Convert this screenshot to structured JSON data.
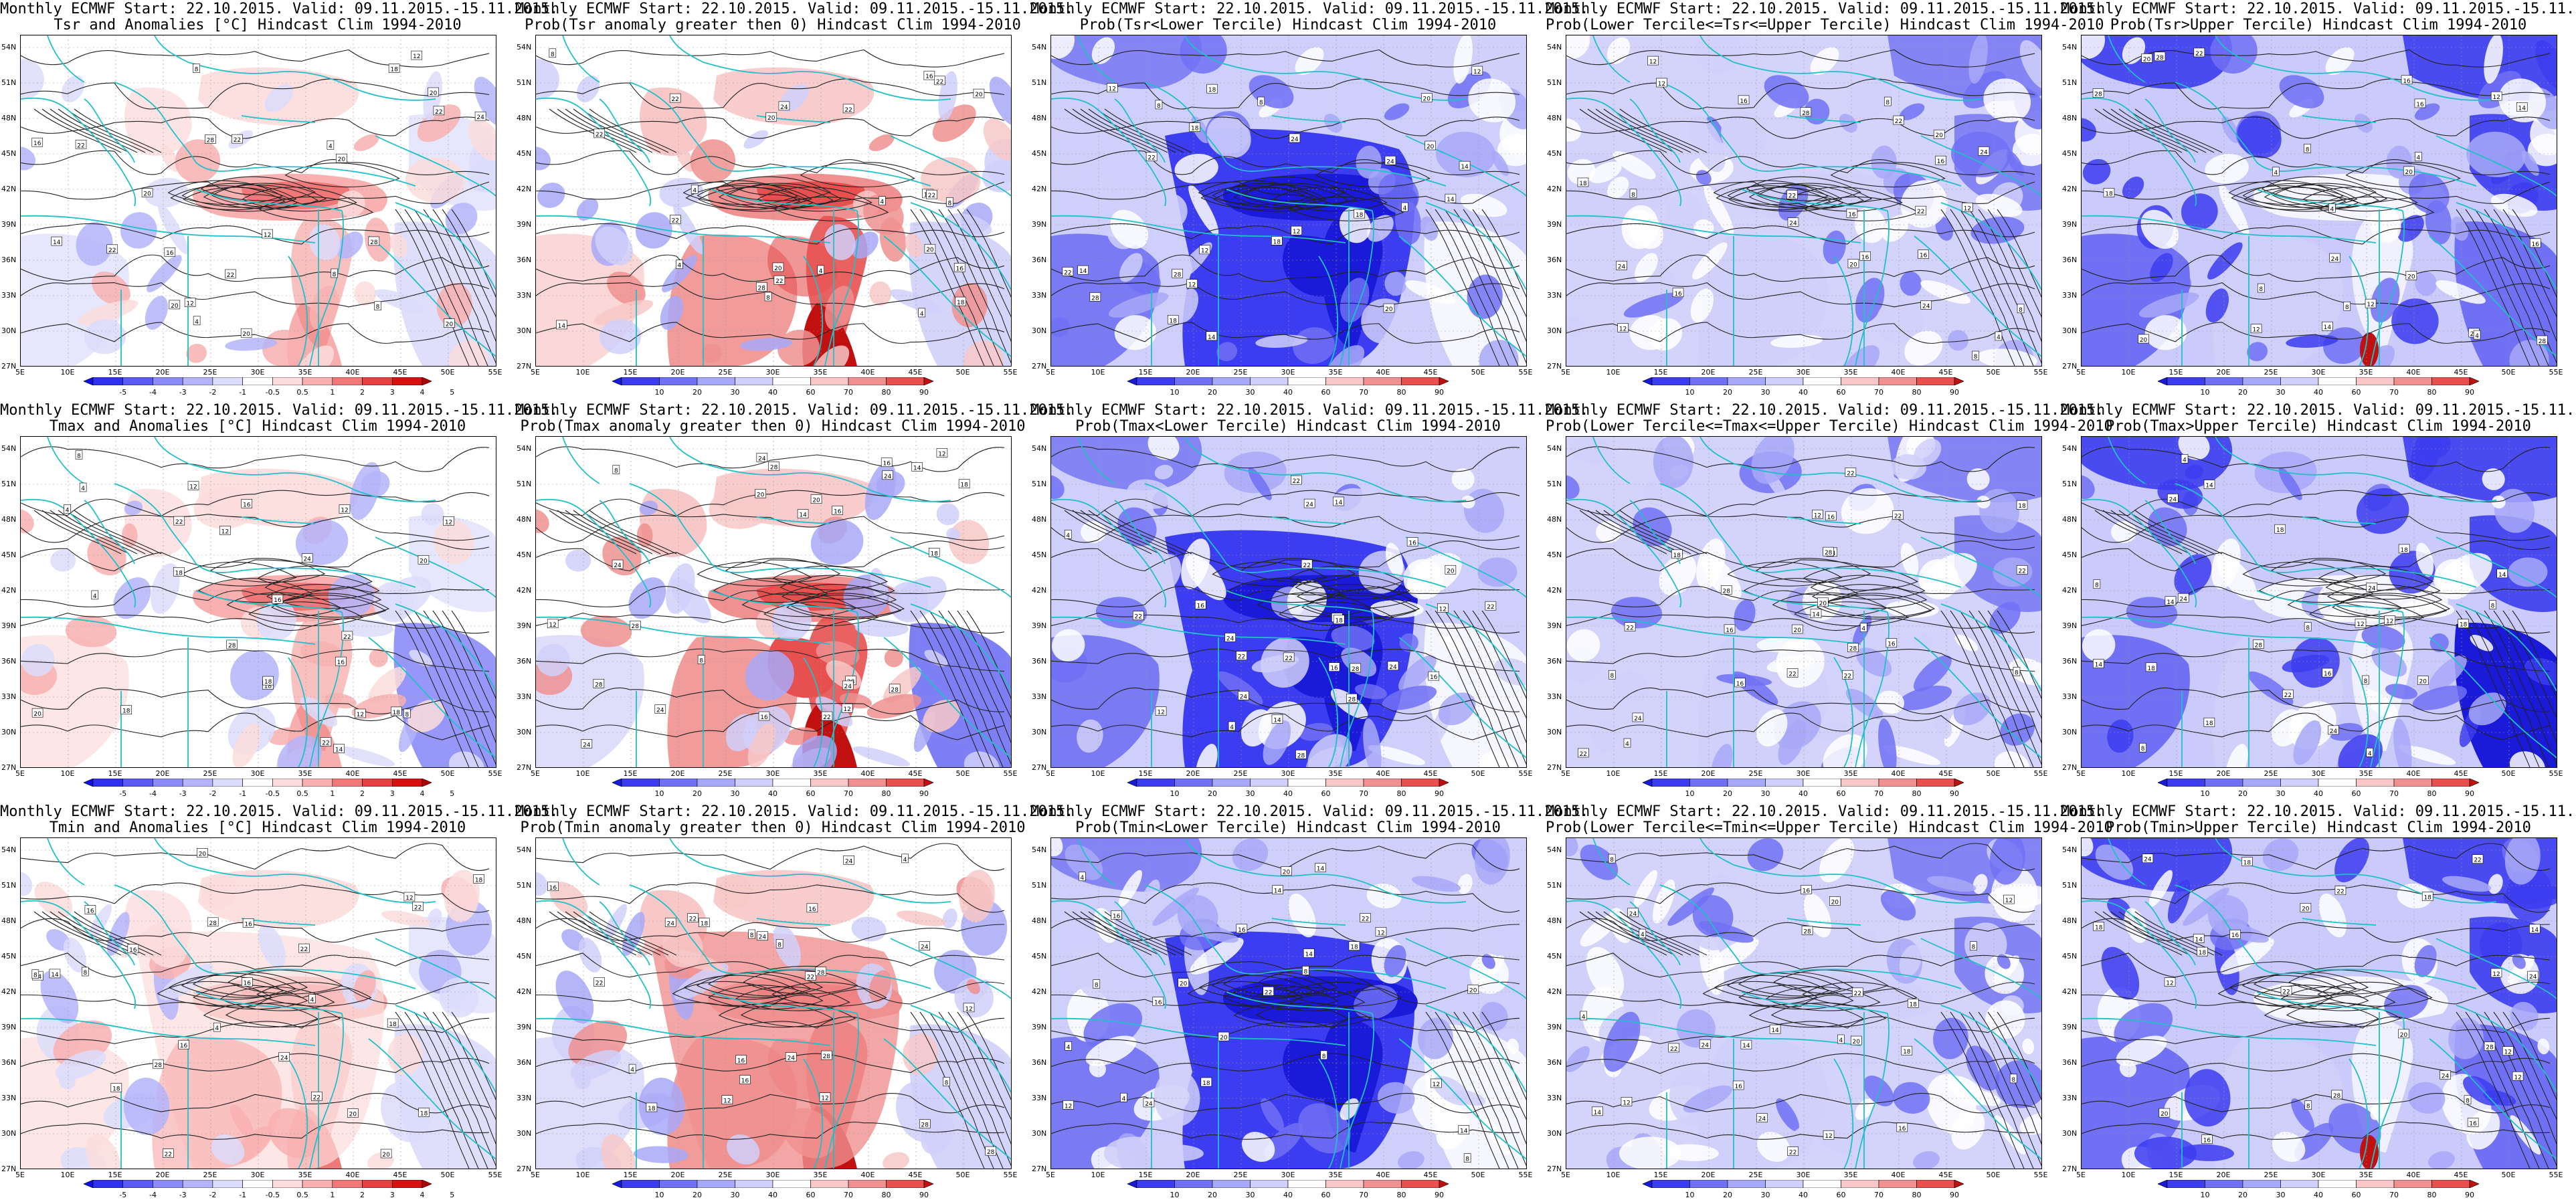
{
  "panels": [
    {
      "kind": "anom",
      "var": "Tsr",
      "line1": "Monthly ECMWF Start: 22.10.2015. Valid: 09.11.2015.-15.11.2015.",
      "line2": "Tsr and Anomalies [°C] Hindcast Clim 1994-2010",
      "colorbar_labels": [
        "-5",
        "-4",
        "-3",
        "-2",
        "-1",
        "-0.5",
        "0.5",
        "1",
        "2",
        "3",
        "4",
        "5"
      ]
    },
    {
      "kind": "pos",
      "var": "Tsr",
      "line1": "Monthly ECMWF Start: 22.10.2015. Valid: 09.11.2015.-15.11.2015.",
      "line2": "Prob(Tsr anomaly greater then 0) Hindcast Clim 1994-2010",
      "colorbar_labels": [
        "10",
        "20",
        "30",
        "40",
        "60",
        "70",
        "80",
        "90"
      ]
    },
    {
      "kind": "lower",
      "var": "Tsr",
      "line1": "Monthly ECMWF Start: 22.10.2015. Valid: 09.11.2015.-15.11.2015.",
      "line2": "Prob(Tsr<Lower Tercile) Hindcast Clim 1994-2010",
      "colorbar_labels": [
        "10",
        "20",
        "30",
        "40",
        "60",
        "70",
        "80",
        "90"
      ]
    },
    {
      "kind": "middle",
      "var": "Tsr",
      "line1": "Monthly ECMWF Start: 22.10.2015. Valid: 09.11.2015.-15.11.2015.",
      "line2": "Prob(Lower Tercile<=Tsr<=Upper Tercile) Hindcast Clim 1994-2010",
      "colorbar_labels": [
        "10",
        "20",
        "30",
        "40",
        "60",
        "70",
        "80",
        "90"
      ]
    },
    {
      "kind": "upper",
      "var": "Tsr",
      "line1": "Monthly ECMWF Start: 22.10.2015. Valid: 09.11.2015.-15.11.2015.",
      "line2": "Prob(Tsr>Upper Tercile) Hindcast Clim 1994-2010",
      "colorbar_labels": [
        "10",
        "20",
        "30",
        "40",
        "60",
        "70",
        "80",
        "90"
      ]
    },
    {
      "kind": "anom",
      "var": "Tmax",
      "line1": "Monthly ECMWF Start: 22.10.2015. Valid: 09.11.2015.-15.11.2015.",
      "line2": "Tmax and Anomalies [°C] Hindcast Clim 1994-2010",
      "colorbar_labels": [
        "-5",
        "-4",
        "-3",
        "-2",
        "-1",
        "-0.5",
        "0.5",
        "1",
        "2",
        "3",
        "4",
        "5"
      ]
    },
    {
      "kind": "pos",
      "var": "Tmax",
      "line1": "Monthly ECMWF Start: 22.10.2015. Valid: 09.11.2015.-15.11.2015.",
      "line2": "Prob(Tmax anomaly greater then 0) Hindcast Clim 1994-2010",
      "colorbar_labels": [
        "10",
        "20",
        "30",
        "40",
        "60",
        "70",
        "80",
        "90"
      ]
    },
    {
      "kind": "lower",
      "var": "Tmax",
      "line1": "Monthly ECMWF Start: 22.10.2015. Valid: 09.11.2015.-15.11.2015.",
      "line2": "Prob(Tmax<Lower Tercile) Hindcast Clim 1994-2010",
      "colorbar_labels": [
        "10",
        "20",
        "30",
        "40",
        "60",
        "70",
        "80",
        "90"
      ]
    },
    {
      "kind": "middle",
      "var": "Tmax",
      "line1": "Monthly ECMWF Start: 22.10.2015. Valid: 09.11.2015.-15.11.2015.",
      "line2": "Prob(Lower Tercile<=Tmax<=Upper Tercile) Hindcast Clim 1994-2010",
      "colorbar_labels": [
        "10",
        "20",
        "30",
        "40",
        "60",
        "70",
        "80",
        "90"
      ]
    },
    {
      "kind": "upper",
      "var": "Tmax",
      "line1": "Monthly ECMWF Start: 22.10.2015. Valid: 09.11.2015.-15.11.2015.",
      "line2": "Prob(Tmax>Upper Tercile) Hindcast Clim 1994-2010",
      "colorbar_labels": [
        "10",
        "20",
        "30",
        "40",
        "60",
        "70",
        "80",
        "90"
      ]
    },
    {
      "kind": "anom",
      "var": "Tmin",
      "line1": "Monthly ECMWF Start: 22.10.2015. Valid: 09.11.2015.-15.11.2015.",
      "line2": "Tmin and Anomalies [°C] Hindcast Clim 1994-2010",
      "colorbar_labels": [
        "-5",
        "-4",
        "-3",
        "-2",
        "-1",
        "-0.5",
        "0.5",
        "1",
        "2",
        "3",
        "4",
        "5"
      ]
    },
    {
      "kind": "pos",
      "var": "Tmin",
      "line1": "Monthly ECMWF Start: 22.10.2015. Valid: 09.11.2015.-15.11.2015.",
      "line2": "Prob(Tmin anomaly greater then 0) Hindcast Clim 1994-2010",
      "colorbar_labels": [
        "10",
        "20",
        "30",
        "40",
        "60",
        "70",
        "80",
        "90"
      ]
    },
    {
      "kind": "lower",
      "var": "Tmin",
      "line1": "Monthly ECMWF Start: 22.10.2015. Valid: 09.11.2015.-15.11.2015.",
      "line2": "Prob(Tmin<Lower Tercile) Hindcast Clim 1994-2010",
      "colorbar_labels": [
        "10",
        "20",
        "30",
        "40",
        "60",
        "70",
        "80",
        "90"
      ]
    },
    {
      "kind": "middle",
      "var": "Tmin",
      "line1": "Monthly ECMWF Start: 22.10.2015. Valid: 09.11.2015.-15.11.2015.",
      "line2": "Prob(Lower Tercile<=Tmin<=Upper Tercile) Hindcast Clim 1994-2010",
      "colorbar_labels": [
        "10",
        "20",
        "30",
        "40",
        "60",
        "70",
        "80",
        "90"
      ]
    },
    {
      "kind": "upper",
      "var": "Tmin",
      "line1": "Monthly ECMWF Start: 22.10.2015. Valid: 09.11.2015.-15.11.2015.",
      "line2": "Prob(Tmin>Upper Tercile) Hindcast Clim 1994-2010",
      "colorbar_labels": [
        "10",
        "20",
        "30",
        "40",
        "60",
        "70",
        "80",
        "90"
      ]
    }
  ],
  "lat_labels": [
    "54N",
    "51N",
    "48N",
    "45N",
    "42N",
    "39N",
    "36N",
    "33N",
    "30N",
    "27N"
  ],
  "lon_labels": [
    "5E",
    "10E",
    "15E",
    "20E",
    "25E",
    "30E",
    "35E",
    "40E",
    "45E",
    "50E",
    "55E"
  ],
  "colors": {
    "coast": "#20c0c8",
    "contour": "#222222",
    "anom_scale": [
      "#1010e0",
      "#3030f0",
      "#5a5af5",
      "#8c8cf8",
      "#b4b4fa",
      "#dcdcfc",
      "#ffffff",
      "#fcdcdc",
      "#f8b0b0",
      "#f07878",
      "#e84040",
      "#d81010",
      "#b00000"
    ],
    "prob_scale": [
      "#1a1ad8",
      "#3c3cf0",
      "#7070f4",
      "#a8a8f8",
      "#d0d0fa",
      "#ffffff",
      "#f8c8c8",
      "#f09090",
      "#e85050",
      "#c01010"
    ]
  }
}
